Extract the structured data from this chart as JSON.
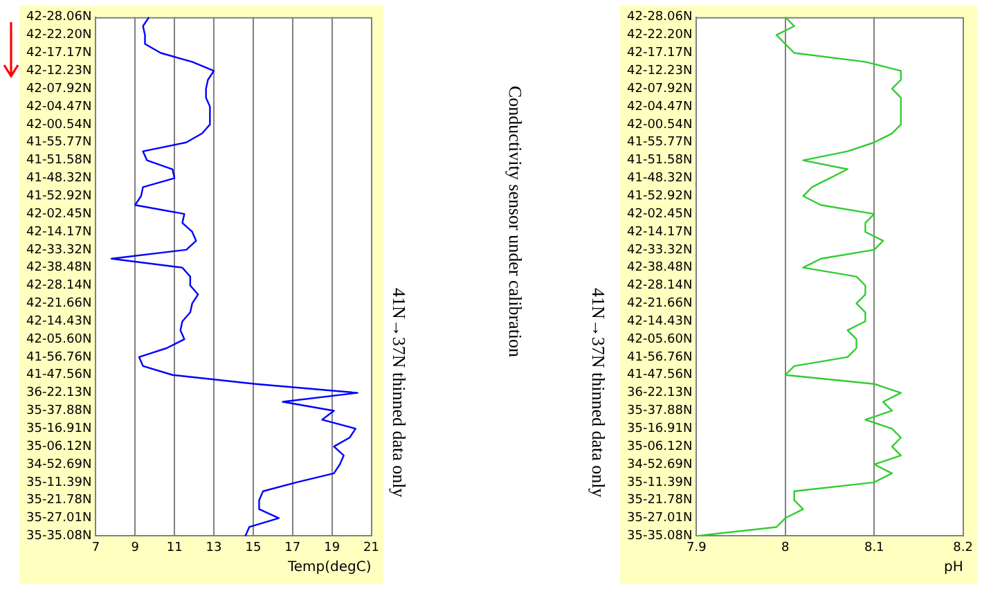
{
  "chart_data": [
    {
      "type": "line",
      "orientation": "horizontal",
      "xlabel": "Temp(degC)",
      "xlim": [
        7,
        21
      ],
      "xticks": [
        7,
        9,
        11,
        13,
        15,
        17,
        19,
        21
      ],
      "grid": "x",
      "marker": "none",
      "annotations": [
        "41N→37N thinned data only",
        "Conductivity sensor under calibration"
      ],
      "categories": [
        "42-28.06N",
        null,
        "42-22.20N",
        null,
        "42-17.17N",
        null,
        "42-12.23N",
        null,
        "42-07.92N",
        null,
        "42-04.47N",
        null,
        "42-00.54N",
        null,
        "41-55.77N",
        null,
        "41-51.58N",
        null,
        "41-48.32N",
        null,
        "41-52.92N",
        null,
        "42-02.45N",
        null,
        "42-14.17N",
        null,
        "42-33.32N",
        null,
        "42-38.48N",
        null,
        "42-28.14N",
        null,
        "42-21.66N",
        null,
        "42-14.43N",
        null,
        "42-05.60N",
        null,
        "41-56.76N",
        null,
        "41-47.56N",
        null,
        "36-22.13N",
        null,
        "35-37.88N",
        null,
        "35-16.91N",
        null,
        "35-06.12N",
        null,
        "34-52.69N",
        null,
        "35-11.39N",
        null,
        "35-21.78N",
        null,
        "35-27.01N",
        null,
        "35-35.08N"
      ],
      "series": [
        {
          "color": "#0000ff",
          "values": [
            9.7,
            9.4,
            9.5,
            9.5,
            10.3,
            11.9,
            13.0,
            12.7,
            12.6,
            12.6,
            12.8,
            12.8,
            12.8,
            12.4,
            11.6,
            9.4,
            9.6,
            10.9,
            11.0,
            9.4,
            9.3,
            9.0,
            11.5,
            11.4,
            11.9,
            12.1,
            11.6,
            7.8,
            11.4,
            11.8,
            11.8,
            12.2,
            11.9,
            11.8,
            11.4,
            11.3,
            11.5,
            10.6,
            9.2,
            9.4,
            10.9,
            15.1,
            20.3,
            16.5,
            19.1,
            18.5,
            20.2,
            19.9,
            19.1,
            19.6,
            19.4,
            19.1,
            17.2,
            15.5,
            15.3,
            15.3,
            16.3,
            14.8,
            14.6
          ]
        }
      ]
    },
    {
      "type": "line",
      "orientation": "horizontal",
      "xlabel": "pH",
      "xlim": [
        7.9,
        8.2
      ],
      "xticks": [
        7.9,
        8,
        8.1,
        8.2
      ],
      "grid": "x",
      "marker": "none",
      "annotations": [
        "41N→37N thinned data only"
      ],
      "categories": [
        "42-28.06N",
        null,
        "42-22.20N",
        null,
        "42-17.17N",
        null,
        "42-12.23N",
        null,
        "42-07.92N",
        null,
        "42-04.47N",
        null,
        "42-00.54N",
        null,
        "41-55.77N",
        null,
        "41-51.58N",
        null,
        "41-48.32N",
        null,
        "41-52.92N",
        null,
        "42-02.45N",
        null,
        "42-14.17N",
        null,
        "42-33.32N",
        null,
        "42-38.48N",
        null,
        "42-28.14N",
        null,
        "42-21.66N",
        null,
        "42-14.43N",
        null,
        "42-05.60N",
        null,
        "41-56.76N",
        null,
        "41-47.56N",
        null,
        "36-22.13N",
        null,
        "35-37.88N",
        null,
        "35-16.91N",
        null,
        "35-06.12N",
        null,
        "34-52.69N",
        null,
        "35-11.39N",
        null,
        "35-21.78N",
        null,
        "35-27.01N",
        null,
        "35-35.08N"
      ],
      "series": [
        {
          "color": "#33cc33",
          "values": [
            8.0,
            8.01,
            7.99,
            8.0,
            8.01,
            8.09,
            8.13,
            8.13,
            8.12,
            8.13,
            8.13,
            8.13,
            8.13,
            8.12,
            8.1,
            8.07,
            8.02,
            8.07,
            8.05,
            8.03,
            8.02,
            8.04,
            8.1,
            8.09,
            8.09,
            8.11,
            8.1,
            8.04,
            8.02,
            8.08,
            8.09,
            8.09,
            8.08,
            8.09,
            8.09,
            8.07,
            8.08,
            8.08,
            8.07,
            8.01,
            8.0,
            8.1,
            8.13,
            8.11,
            8.12,
            8.09,
            8.12,
            8.13,
            8.12,
            8.13,
            8.1,
            8.12,
            8.1,
            8.01,
            8.01,
            8.02,
            8.0,
            7.99,
            7.9
          ]
        }
      ]
    }
  ]
}
